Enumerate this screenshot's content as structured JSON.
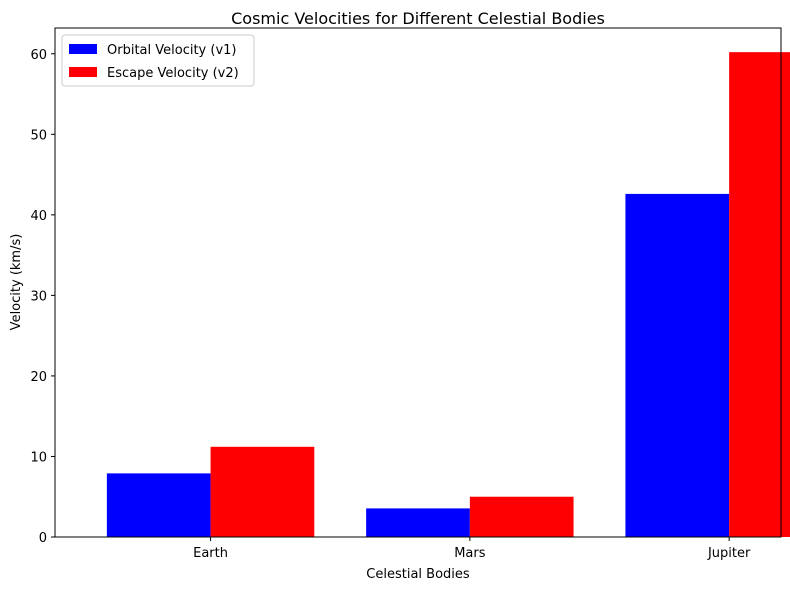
{
  "chart_data": {
    "type": "bar",
    "title": "Cosmic Velocities for Different Celestial Bodies",
    "xlabel": "Celestial Bodies",
    "ylabel": "Velocity (km/s)",
    "categories": [
      "Earth",
      "Mars",
      "Jupiter"
    ],
    "series": [
      {
        "name": "Orbital Velocity (v1)",
        "color": "#0000ff",
        "values": [
          7.9,
          3.55,
          42.6
        ]
      },
      {
        "name": "Escape Velocity (v2)",
        "color": "#ff0000",
        "values": [
          11.2,
          5.0,
          60.2
        ]
      }
    ],
    "ylim": [
      0,
      63.2
    ],
    "yticks": [
      0,
      10,
      20,
      30,
      40,
      50,
      60
    ],
    "grid": false,
    "legend_position": "top-left"
  }
}
